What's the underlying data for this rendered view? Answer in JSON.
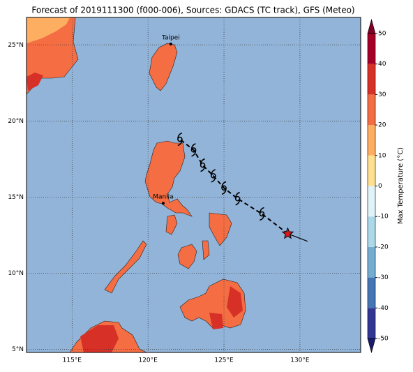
{
  "title": "Forecast of 2019111300 (f000-006), Sources: GDACS (TC track), GFS (Meteo)",
  "map": {
    "xlim": [
      112,
      134
    ],
    "ylim": [
      4.8,
      26.8
    ],
    "xticks": [
      {
        "value": 115,
        "label": "115°E"
      },
      {
        "value": 120,
        "label": "120°E"
      },
      {
        "value": 125,
        "label": "125°E"
      },
      {
        "value": 130,
        "label": "130°E"
      }
    ],
    "yticks": [
      {
        "value": 5,
        "label": "5°N"
      },
      {
        "value": 10,
        "label": "10°N"
      },
      {
        "value": 15,
        "label": "15°N"
      },
      {
        "value": 20,
        "label": "20°N"
      },
      {
        "value": 25,
        "label": "25°N"
      }
    ],
    "grid": true,
    "ocean_color": "#92b4d8"
  },
  "cities": [
    {
      "name": "Taipei",
      "lon": 121.5,
      "lat": 25.05
    },
    {
      "name": "Manila",
      "lon": 121.0,
      "lat": 14.6
    }
  ],
  "track": {
    "lon": [
      127.5,
      125.9,
      125.0,
      124.3,
      123.6,
      123.0,
      122.1
    ],
    "lat": [
      13.9,
      14.9,
      15.6,
      16.4,
      17.1,
      18.1,
      18.8
    ]
  },
  "current_position": {
    "lon": 129.2,
    "lat": 12.6
  },
  "past_track_end": {
    "lon": 130.5,
    "lat": 12.1
  },
  "colorbar": {
    "label": "Max Temperature (°C)",
    "ticks": [
      -50,
      -40,
      -30,
      -20,
      -10,
      0,
      10,
      20,
      30,
      40,
      50
    ],
    "colors": [
      "#313695",
      "#4575b4",
      "#74add1",
      "#abd9e9",
      "#e0f3f8",
      "#fee090",
      "#fdae61",
      "#f46d43",
      "#d73027",
      "#a50026"
    ],
    "under_color": "#1a1a6e",
    "over_color": "#800026"
  }
}
